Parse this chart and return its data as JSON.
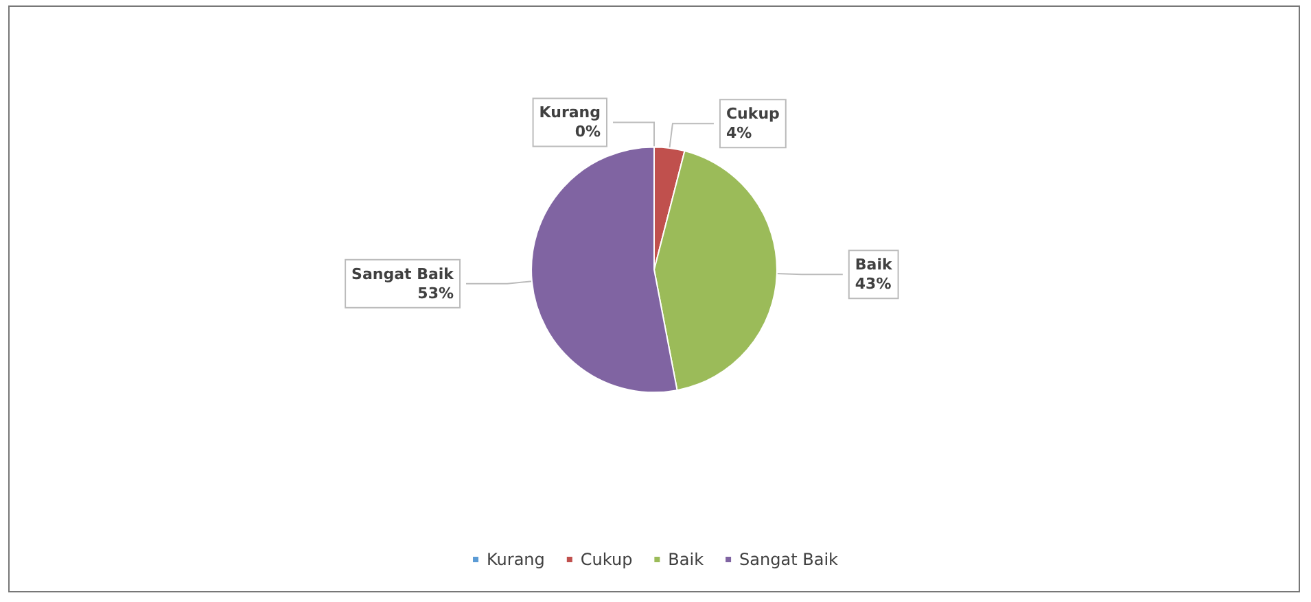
{
  "chart_data": {
    "type": "pie",
    "categories": [
      "Kurang",
      "Cukup",
      "Baik",
      "Sangat Baik"
    ],
    "values": [
      0,
      4,
      43,
      53
    ],
    "value_labels": [
      "0%",
      "4%",
      "43%",
      "53%"
    ],
    "colors": [
      "#5b9bd5",
      "#c0504d",
      "#9bbb59",
      "#8064a2"
    ],
    "legend": "bottom"
  }
}
